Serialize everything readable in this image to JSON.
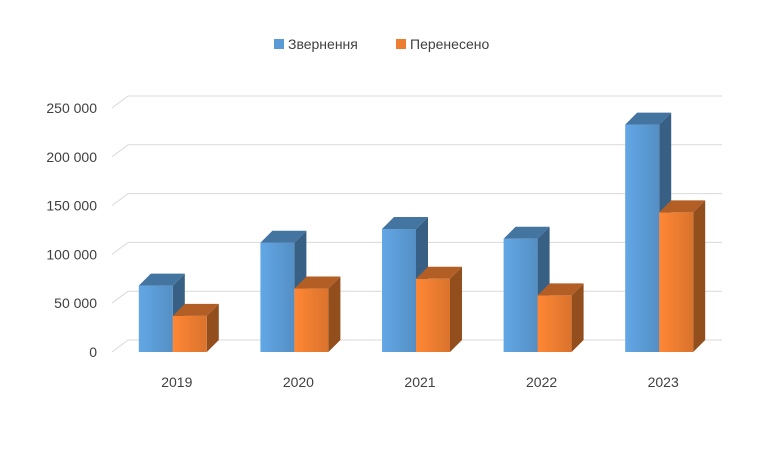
{
  "chart_data": {
    "type": "bar",
    "title": "",
    "xlabel": "",
    "ylabel": "",
    "categories": [
      "2019",
      "2020",
      "2021",
      "2022",
      "2023"
    ],
    "series": [
      {
        "name": "Звернення",
        "values": [
          68000,
          112000,
          126000,
          116000,
          233000
        ],
        "color": "#5b9bd5"
      },
      {
        "name": "Перенесено",
        "values": [
          37000,
          65000,
          75000,
          58000,
          143000
        ],
        "color": "#ed7d31"
      }
    ],
    "ylim": [
      0,
      250000
    ],
    "yticks": [
      "0",
      "50 000",
      "100 000",
      "150 000",
      "200 000",
      "250 000"
    ],
    "grid": true,
    "legend_position": "top",
    "style": "3d-clustered-column"
  }
}
